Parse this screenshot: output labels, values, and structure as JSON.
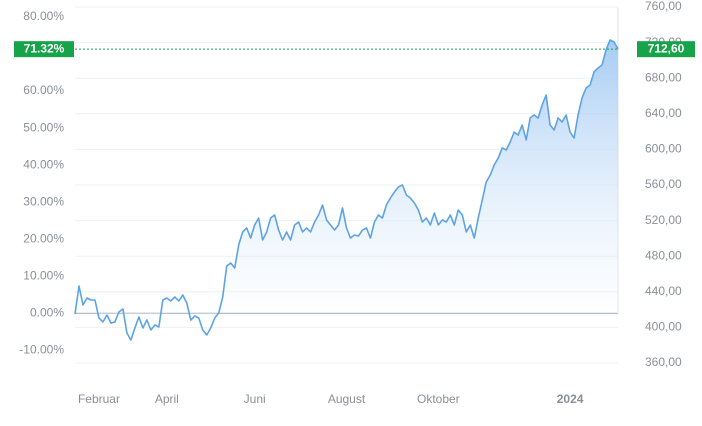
{
  "chart_data": {
    "type": "area",
    "categories": [
      null,
      null,
      null,
      null,
      null,
      null,
      "Februar",
      null,
      null,
      null,
      null,
      null,
      null,
      null,
      null,
      null,
      null,
      null,
      null,
      null,
      null,
      null,
      null,
      "April",
      null,
      null,
      null,
      null,
      null,
      null,
      null,
      null,
      null,
      null,
      null,
      null,
      null,
      null,
      null,
      null,
      null,
      null,
      null,
      null,
      null,
      "Juni",
      null,
      null,
      null,
      null,
      null,
      null,
      null,
      null,
      null,
      null,
      null,
      null,
      null,
      null,
      null,
      null,
      null,
      null,
      null,
      null,
      null,
      null,
      "August",
      null,
      null,
      null,
      null,
      null,
      null,
      null,
      null,
      null,
      null,
      null,
      null,
      null,
      null,
      null,
      null,
      null,
      null,
      null,
      null,
      null,
      null,
      "Oktober",
      null,
      null,
      null,
      null,
      null,
      null,
      null,
      null,
      null,
      null,
      null,
      null,
      null,
      null,
      null,
      null,
      null,
      null,
      null,
      null,
      null,
      null,
      null,
      null,
      null,
      null,
      null,
      null,
      null,
      null,
      null,
      null,
      "2024",
      null,
      null,
      null,
      null,
      null,
      null,
      null,
      null,
      null,
      null,
      null,
      null
    ],
    "series": [
      {
        "color": "#5ea3e4",
        "axis": "y2",
        "values": [
          415.1,
          446.5,
          425.2,
          433.0,
          430.8,
          430.8,
          410.6,
          406.1,
          413.9,
          404.9,
          406.1,
          417.3,
          420.7,
          393.7,
          385.8,
          399.3,
          411.7,
          399.3,
          408.3,
          397.1,
          402.7,
          400.4,
          430.8,
          433.0,
          429.7,
          434.2,
          429.7,
          436.4,
          427.4,
          408.3,
          412.8,
          410.6,
          397.1,
          391.5,
          399.3,
          410.6,
          416.2,
          434.2,
          469.0,
          472.4,
          466.7,
          492.6,
          507.2,
          511.7,
          500.4,
          515.1,
          522.9,
          498.2,
          507.2,
          522.9,
          526.3,
          509.4,
          498.2,
          507.2,
          498.2,
          515.1,
          518.4,
          507.2,
          511.7,
          507.2,
          518.4,
          526.3,
          537.5,
          520.7,
          515.1,
          509.4,
          515.1,
          534.2,
          511.7,
          500.4,
          503.8,
          502.7,
          509.4,
          511.7,
          500.4,
          518.4,
          526.3,
          522.9,
          537.5,
          545.4,
          552.1,
          557.8,
          560.0,
          548.8,
          545.4,
          539.8,
          531.9,
          518.4,
          522.9,
          515.1,
          528.5,
          515.1,
          520.7,
          518.4,
          526.3,
          515.1,
          531.9,
          526.3,
          507.2,
          515.1,
          500.4,
          522.9,
          543.1,
          563.4,
          571.2,
          582.5,
          590.3,
          601.6,
          599.3,
          608.3,
          619.5,
          616.2,
          627.4,
          610.6,
          635.3,
          638.7,
          635.3,
          649.9,
          661.1,
          627.4,
          621.8,
          635.3,
          630.8,
          638.7,
          619.5,
          612.8,
          638.7,
          657.8,
          669.0,
          672.4,
          687.0,
          691.5,
          694.8,
          711.7,
          722.9,
          720.7,
          712.6
        ]
      }
    ],
    "ylim": [
      -13.45,
      82.71
    ],
    "yticks": [
      {
        "value": 80,
        "label": "80.00%"
      },
      {
        "value": 60,
        "label": "60.00%"
      },
      {
        "value": 50,
        "label": "50.00%"
      },
      {
        "value": 40,
        "label": "40.00%"
      },
      {
        "value": 30,
        "label": "30.00%"
      },
      {
        "value": 20,
        "label": "20.00%"
      },
      {
        "value": 10,
        "label": "10.00%"
      },
      {
        "value": 0,
        "label": "0.00%"
      },
      {
        "value": -10,
        "label": "-10.00%"
      }
    ],
    "y2lim": [
      360,
      760
    ],
    "y2ticks": [
      {
        "value": 760,
        "label": "760,00"
      },
      {
        "value": 720,
        "label": "720,00"
      },
      {
        "value": 680,
        "label": "680,00"
      },
      {
        "value": 640,
        "label": "640,00"
      },
      {
        "value": 600,
        "label": "600,00"
      },
      {
        "value": 560,
        "label": "560,00"
      },
      {
        "value": 520,
        "label": "520,00"
      },
      {
        "value": 480,
        "label": "480,00"
      },
      {
        "value": 440,
        "label": "440,00"
      },
      {
        "value": 400,
        "label": "400,00"
      },
      {
        "value": 360,
        "label": "360,00"
      }
    ],
    "grid": true,
    "current_percent": {
      "value": 71.32,
      "label": "71.32%"
    },
    "current_value": {
      "value": 712.6,
      "label": "712,60"
    },
    "marker_color": "#16a34a"
  }
}
